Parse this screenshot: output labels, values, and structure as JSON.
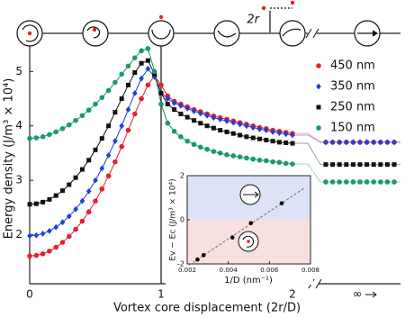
{
  "chart_data": {
    "type": "line",
    "x_label": "Vortex core displacement (2r/D)",
    "y_label": "Energy density (J/m³ × 10⁴)",
    "annotation": "2r",
    "infinity_label": "∞",
    "x": [
      0,
      0.05,
      0.1,
      0.15,
      0.2,
      0.25,
      0.3,
      0.35,
      0.4,
      0.45,
      0.5,
      0.55,
      0.6,
      0.65,
      0.7,
      0.75,
      0.8,
      0.85,
      0.9,
      0.95,
      1.0,
      1.05,
      1.1,
      1.15,
      1.2,
      1.25,
      1.3,
      1.35,
      1.4,
      1.45,
      1.5,
      1.55,
      1.6,
      1.65,
      1.7,
      1.75,
      1.8,
      1.85,
      1.9,
      1.95,
      2.0
    ],
    "xlim": [
      0,
      2.82
    ],
    "xticks": [
      0,
      1,
      2
    ],
    "ylim": [
      1.1,
      5.7
    ],
    "yticks": [
      2,
      3,
      4,
      5
    ],
    "legend": "upper right",
    "series": [
      {
        "name": "450 nm",
        "color": "#e8202a",
        "marker": "circle",
        "limit_value": 3.7,
        "values": [
          1.61,
          1.62,
          1.65,
          1.7,
          1.77,
          1.86,
          1.97,
          2.1,
          2.25,
          2.42,
          2.62,
          2.84,
          3.08,
          3.34,
          3.62,
          3.92,
          4.22,
          4.5,
          4.75,
          4.92,
          4.75,
          4.55,
          4.45,
          4.4,
          4.35,
          4.3,
          4.26,
          4.22,
          4.18,
          4.15,
          4.12,
          4.09,
          4.06,
          4.03,
          4.0,
          3.97,
          3.95,
          3.92,
          3.9,
          3.88,
          3.86
        ]
      },
      {
        "name": "350 nm",
        "color": "#1f3fd8",
        "marker": "diamond",
        "limit_value": 3.7,
        "values": [
          1.98,
          1.99,
          2.02,
          2.07,
          2.14,
          2.23,
          2.34,
          2.47,
          2.62,
          2.8,
          3.0,
          3.22,
          3.46,
          3.72,
          4.0,
          4.3,
          4.6,
          4.87,
          5.05,
          4.9,
          4.6,
          4.5,
          4.42,
          4.37,
          4.32,
          4.27,
          4.23,
          4.19,
          4.15,
          4.12,
          4.09,
          4.06,
          4.03,
          4.0,
          3.97,
          3.94,
          3.92,
          3.89,
          3.87,
          3.85,
          3.83
        ]
      },
      {
        "name": "250 nm",
        "color": "#111111",
        "marker": "square",
        "limit_value": 3.29,
        "values": [
          2.56,
          2.57,
          2.6,
          2.65,
          2.72,
          2.81,
          2.92,
          3.05,
          3.2,
          3.37,
          3.56,
          3.77,
          4.0,
          4.25,
          4.5,
          4.75,
          4.98,
          5.15,
          5.2,
          4.95,
          4.6,
          4.4,
          4.3,
          4.22,
          4.16,
          4.1,
          4.05,
          4.0,
          3.96,
          3.92,
          3.89,
          3.86,
          3.83,
          3.8,
          3.78,
          3.76,
          3.74,
          3.72,
          3.7,
          3.69,
          3.68
        ]
      },
      {
        "name": "150 nm",
        "color": "#1a9a6a",
        "marker": "circle",
        "limit_value": 2.97,
        "values": [
          3.77,
          3.78,
          3.8,
          3.84,
          3.89,
          3.95,
          4.02,
          4.1,
          4.19,
          4.29,
          4.4,
          4.52,
          4.65,
          4.8,
          4.95,
          5.1,
          5.25,
          5.38,
          5.42,
          5.0,
          4.4,
          4.05,
          3.9,
          3.8,
          3.72,
          3.66,
          3.61,
          3.57,
          3.53,
          3.5,
          3.47,
          3.45,
          3.43,
          3.41,
          3.39,
          3.37,
          3.36,
          3.34,
          3.33,
          3.31,
          3.3
        ]
      }
    ],
    "inset": {
      "type": "scatter",
      "x_label": "1/D (nm⁻¹)",
      "y_label": "Ev − Ec (J/m³ × 10⁴)",
      "x": [
        0.0025,
        0.0028,
        0.0042,
        0.0051,
        0.0066
      ],
      "values": [
        -1.8,
        -1.6,
        -0.8,
        -0.15,
        0.75
      ],
      "color": "#000000",
      "xlim": [
        0.002,
        0.008
      ],
      "xticks": [
        0.002,
        0.004,
        0.006,
        0.008
      ],
      "ylim": [
        -2,
        2
      ],
      "yticks": [
        -2,
        0,
        2
      ],
      "upper_color": "#dde2f6",
      "lower_color": "#f9dfe0"
    }
  }
}
